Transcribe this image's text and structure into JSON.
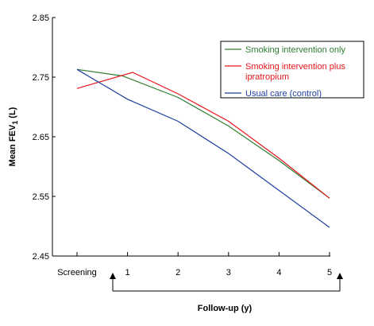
{
  "chart_data": {
    "type": "line",
    "title": "",
    "ylabel": "Mean FEV",
    "ylabel_subscript": "1",
    "ylabel_unit": " (L)",
    "xlabel": "Follow-up (y)",
    "categories": [
      "Screening",
      "1",
      "2",
      "3",
      "4",
      "5"
    ],
    "x": [
      0,
      1,
      2,
      3,
      4,
      5
    ],
    "ylim": [
      2.45,
      2.85
    ],
    "yticks": [
      2.45,
      2.55,
      2.65,
      2.75,
      2.85
    ],
    "ytick_labels": [
      "2.45",
      "2.55",
      "2.65",
      "2.75",
      "2.85"
    ],
    "grid": false,
    "legend_position": "top-right",
    "series": [
      {
        "name": "Smoking intervention only",
        "color": "#2e7d32",
        "points": [
          [
            0,
            2.763
          ],
          [
            0.9,
            2.752
          ],
          [
            2,
            2.716
          ],
          [
            3,
            2.668
          ],
          [
            4,
            2.61
          ],
          [
            5,
            2.547
          ]
        ]
      },
      {
        "name": "Smoking intervention plus ipratropium",
        "color": "#e8161b",
        "name_lines": [
          "Smoking intervention plus",
          "ipratropium"
        ],
        "points": [
          [
            0,
            2.731
          ],
          [
            1.1,
            2.758
          ],
          [
            2,
            2.722
          ],
          [
            3,
            2.676
          ],
          [
            4,
            2.614
          ],
          [
            5,
            2.547
          ]
        ]
      },
      {
        "name": "Usual care (control)",
        "color": "#1f3f9e",
        "points": [
          [
            0,
            2.763
          ],
          [
            1,
            2.713
          ],
          [
            2,
            2.676
          ],
          [
            3,
            2.622
          ],
          [
            4,
            2.56
          ],
          [
            5,
            2.498
          ]
        ]
      }
    ]
  }
}
